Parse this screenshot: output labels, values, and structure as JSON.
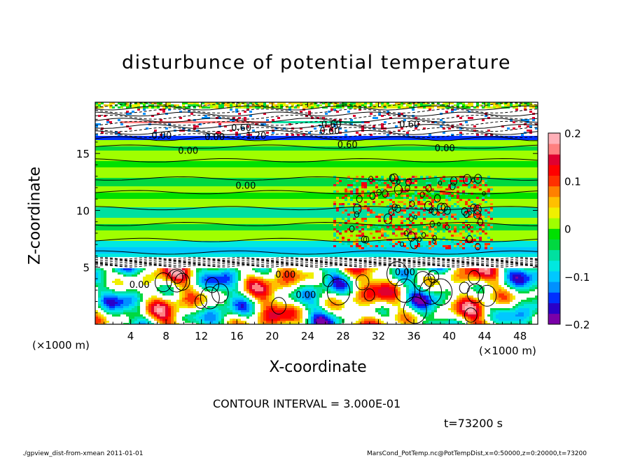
{
  "chart_data": {
    "type": "heatmap",
    "title": "disturbunce of potential temperature",
    "xlabel": "X-coordinate",
    "ylabel": "Z-coordinate",
    "x_unit": "(×1000 m)",
    "y_unit": "(×1000 m)",
    "xlim": [
      0,
      50
    ],
    "ylim": [
      0,
      19.5
    ],
    "x_ticks": [
      4,
      8,
      12,
      16,
      20,
      24,
      28,
      32,
      36,
      40,
      44,
      48
    ],
    "y_ticks": [
      5,
      10,
      15
    ],
    "colorbar": {
      "vmin": -0.2,
      "vmax": 0.2,
      "ticks": [
        {
          "value": 0.2,
          "label": "0.2"
        },
        {
          "value": 0.1,
          "label": "0.1"
        },
        {
          "value": 0,
          "label": "0"
        },
        {
          "value": -0.1,
          "label": "−0.1"
        },
        {
          "value": -0.2,
          "label": "−0.2"
        }
      ],
      "colors": [
        "#7a00a8",
        "#2a00c8",
        "#0030ff",
        "#0090ff",
        "#00c8ff",
        "#00e8e0",
        "#00e0a0",
        "#00d840",
        "#00e000",
        "#a0ff00",
        "#f0f000",
        "#ffc000",
        "#ff8000",
        "#ff3000",
        "#ff0000",
        "#e00030",
        "#ff8080",
        "#ffb0b8"
      ]
    },
    "contour_interval": "CONTOUR INTERVAL = 3.000E-01",
    "contour_labels": [
      {
        "x": 16.5,
        "z": 17.3,
        "text": "0.60"
      },
      {
        "x": 26.5,
        "z": 17.6,
        "text": "-0.60"
      },
      {
        "x": 35.5,
        "z": 17.6,
        "text": "0.60"
      },
      {
        "x": 7.5,
        "z": 16.6,
        "text": "0.00"
      },
      {
        "x": 13.5,
        "z": 16.5,
        "text": "0.00"
      },
      {
        "x": 18,
        "z": 16.6,
        "text": "-1.20"
      },
      {
        "x": 26.5,
        "z": 17.0,
        "text": "0.60"
      },
      {
        "x": 28.5,
        "z": 15.8,
        "text": "0.60"
      },
      {
        "x": 39.5,
        "z": 15.5,
        "text": "0.00"
      },
      {
        "x": 10.5,
        "z": 15.3,
        "text": "0.00"
      },
      {
        "x": 17,
        "z": 12.2,
        "text": "0.00"
      },
      {
        "x": 21.5,
        "z": 4.4,
        "text": "0.00"
      },
      {
        "x": 23.8,
        "z": 2.6,
        "text": "0.00"
      },
      {
        "x": 5,
        "z": 3.5,
        "text": "0.00"
      },
      {
        "x": 35,
        "z": 4.6,
        "text": "0.00"
      }
    ]
  },
  "time_label": "t=73200 s",
  "footer": {
    "left": "./gpview_dist-from-xmean  2011-01-01",
    "right": "MarsCond_PotTemp.nc@PotTempDist,x=0:50000,z=0:20000,t=73200"
  }
}
